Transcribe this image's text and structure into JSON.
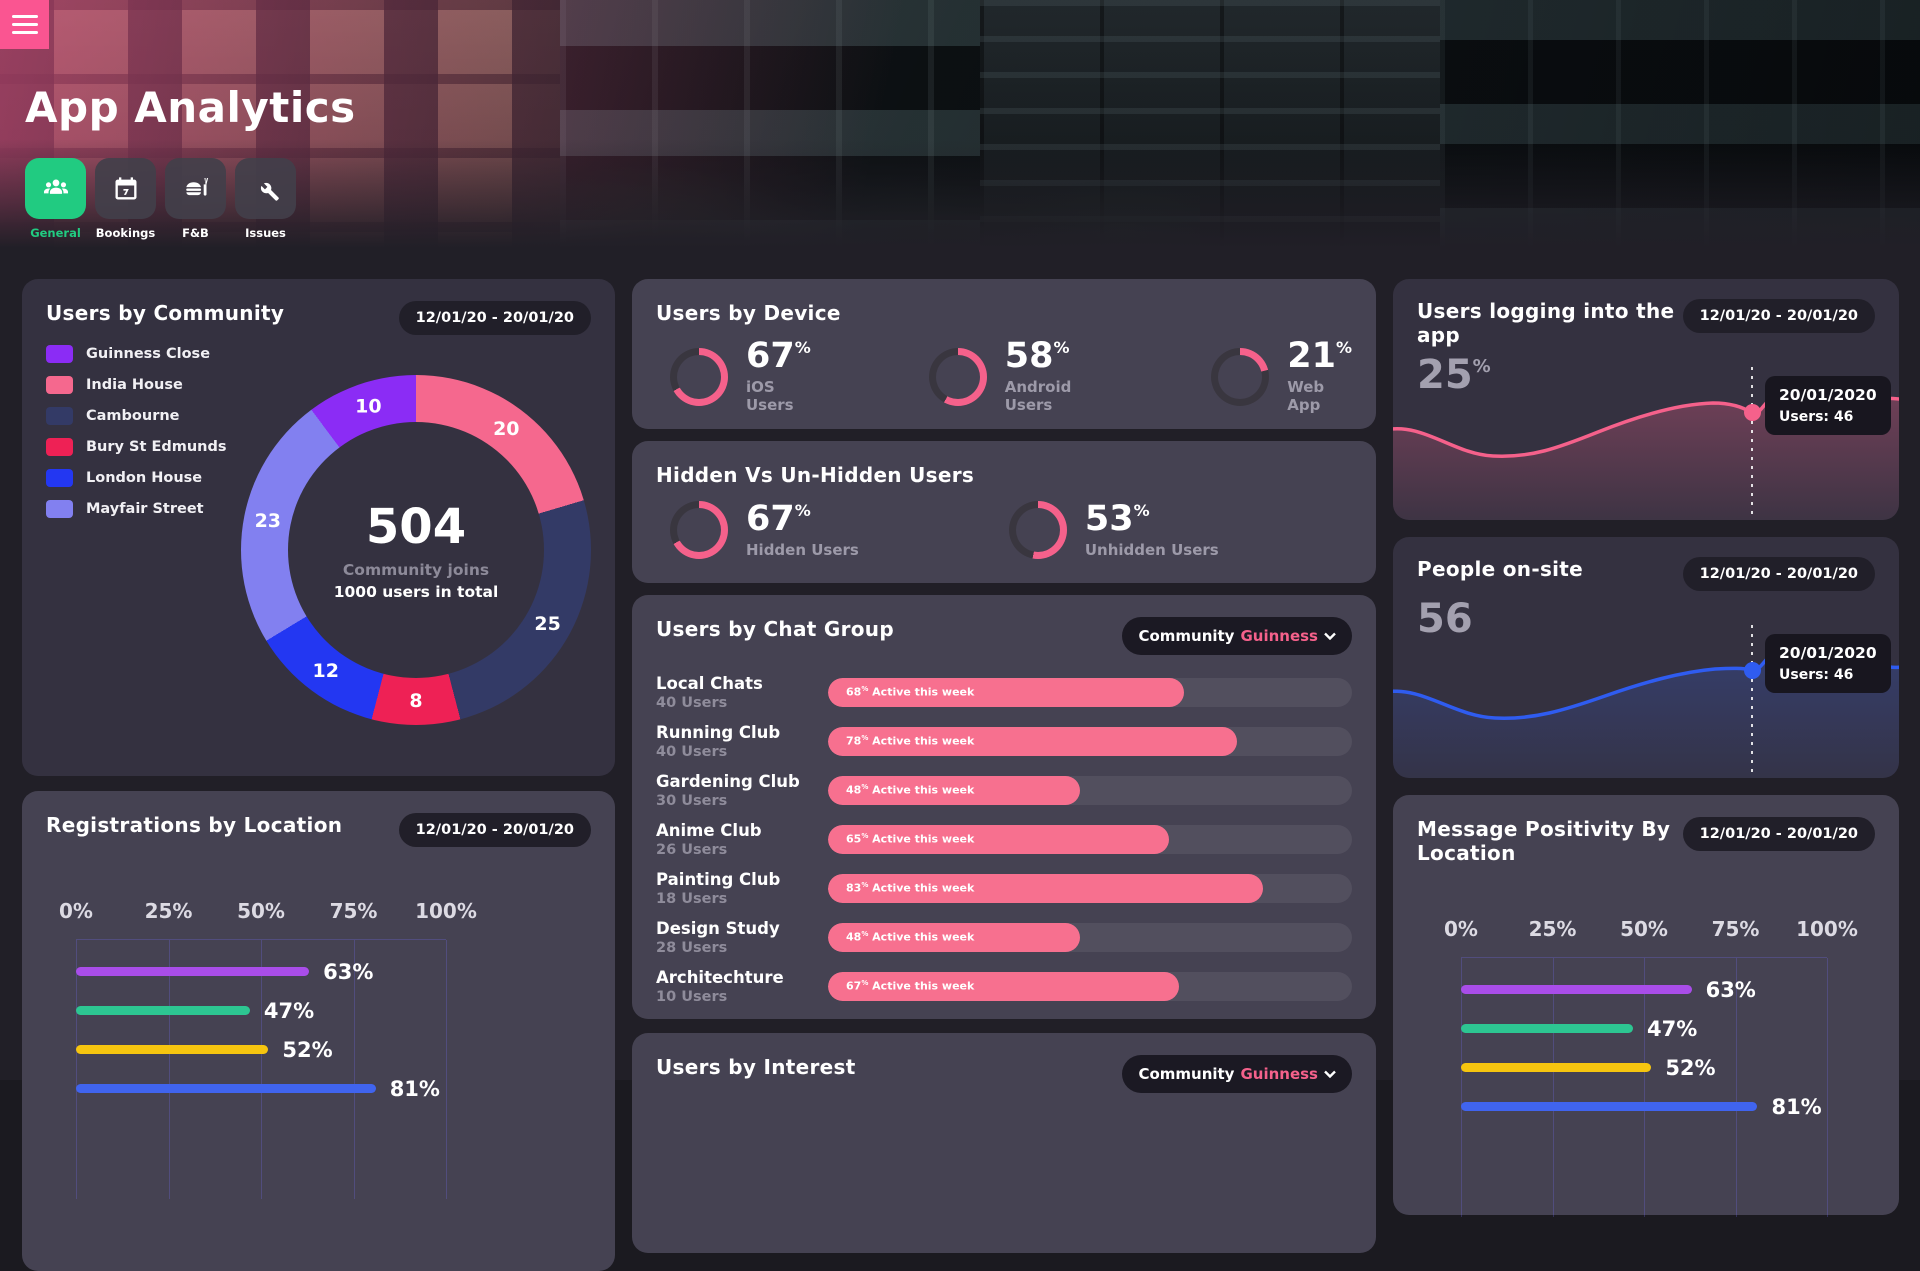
{
  "header": {
    "title": "App Analytics",
    "nav": [
      {
        "label": "General",
        "icon": "people-icon",
        "active": true
      },
      {
        "label": "Bookings",
        "icon": "calendar-icon",
        "active": false
      },
      {
        "label": "F&B",
        "icon": "food-icon",
        "active": false
      },
      {
        "label": "Issues",
        "icon": "wrench-icon",
        "active": false
      }
    ]
  },
  "colors": {
    "accent_pink": "#f5618b",
    "accent_green": "#21cb81",
    "hero_pink": "#fa5591",
    "gauge_track": "#39363f"
  },
  "cards": {
    "community": {
      "title": "Users by Community",
      "date_range": "12/01/20 - 20/01/20",
      "legend": [
        {
          "label": "Guinness Close",
          "color": "#8b2cf5"
        },
        {
          "label": "India House",
          "color": "#f5688e"
        },
        {
          "label": "Cambourne",
          "color": "#333a66"
        },
        {
          "label": "Bury St Edmunds",
          "color": "#ee2155"
        },
        {
          "label": "London House",
          "color": "#2337f2"
        },
        {
          "label": "Mayfair Street",
          "color": "#8280f0"
        }
      ],
      "segments": [
        {
          "label": "India House",
          "value": 20,
          "color": "#f5688e"
        },
        {
          "label": "Cambourne",
          "value": 25,
          "color": "#333a66"
        },
        {
          "label": "Bury St Edmunds",
          "value": 8,
          "color": "#ee2155"
        },
        {
          "label": "London House",
          "value": 12,
          "color": "#2337f2"
        },
        {
          "label": "Mayfair Street",
          "value": 23,
          "color": "#8280f0"
        },
        {
          "label": "Guinness Close",
          "value": 10,
          "color": "#8b2cf5"
        }
      ],
      "center_value": "504",
      "center_label": "Community joins",
      "center_sublabel": "1000 users in total"
    },
    "device": {
      "title": "Users by Device",
      "gauges": [
        {
          "value": 67,
          "label": "iOS Users"
        },
        {
          "value": 58,
          "label": "Android Users"
        },
        {
          "value": 21,
          "label": "Web App"
        }
      ]
    },
    "hidden": {
      "title": "Hidden Vs Un-Hidden Users",
      "gauges": [
        {
          "value": 67,
          "label": "Hidden Users"
        },
        {
          "value": 53,
          "label": "Unhidden Users"
        }
      ]
    },
    "chat_group": {
      "title": "Users by Chat Group",
      "selector_prefix": "Community",
      "selector_value": "Guinness",
      "bar_suffix": "Active this week",
      "rows": [
        {
          "name": "Local Chats",
          "users": "40 Users",
          "percent": 68
        },
        {
          "name": "Running Club",
          "users": "40 Users",
          "percent": 78
        },
        {
          "name": "Gardening Club",
          "users": "30 Users",
          "percent": 48
        },
        {
          "name": "Anime Club",
          "users": "26 Users",
          "percent": 65
        },
        {
          "name": "Painting Club",
          "users": "18 Users",
          "percent": 83
        },
        {
          "name": "Design Study",
          "users": "28 Users",
          "percent": 48
        },
        {
          "name": "Architechture",
          "users": "10 Users",
          "percent": 67
        }
      ]
    },
    "interest": {
      "title": "Users by Interest",
      "selector_prefix": "Community",
      "selector_value": "Guinness"
    },
    "logins": {
      "title": "Users logging into the app",
      "date_range": "12/01/20 - 20/01/20",
      "value": "25",
      "value_suffix": "%",
      "tooltip_date": "20/01/2020",
      "tooltip_users": "Users: 46",
      "line_color": "#f5618b"
    },
    "onsite": {
      "title": "People on-site",
      "date_range": "12/01/20 - 20/01/20",
      "value": "56",
      "tooltip_date": "20/01/2020",
      "tooltip_users": "Users: 46",
      "line_color": "#2f5cf0"
    },
    "registrations": {
      "title": "Registrations by Location",
      "date_range": "12/01/20 - 20/01/20",
      "axis": [
        "0%",
        "25%",
        "50%",
        "75%",
        "100%"
      ],
      "bars": [
        {
          "percent": 63,
          "color": "#a94de9"
        },
        {
          "percent": 47,
          "color": "#2dc692"
        },
        {
          "percent": 52,
          "color": "#f6c50f"
        },
        {
          "percent": 81,
          "color": "#4064ee"
        }
      ]
    },
    "positivity": {
      "title": "Message Positivity By Location",
      "date_range": "12/01/20 - 20/01/20",
      "axis": [
        "0%",
        "25%",
        "50%",
        "75%",
        "100%"
      ],
      "bars": [
        {
          "percent": 63,
          "color": "#a94de9"
        },
        {
          "percent": 47,
          "color": "#2dc692"
        },
        {
          "percent": 52,
          "color": "#f6c50f"
        },
        {
          "percent": 81,
          "color": "#4064ee"
        }
      ]
    }
  },
  "chart_data": [
    {
      "type": "pie",
      "title": "Users by Community",
      "categories": [
        "India House",
        "Cambourne",
        "Bury St Edmunds",
        "London House",
        "Mayfair Street",
        "Guinness Close"
      ],
      "values": [
        20,
        25,
        8,
        12,
        23,
        10
      ],
      "center_value": 504,
      "center_label": "Community joins",
      "center_sublabel": "1000 users in total"
    },
    {
      "type": "gauge",
      "title": "Users by Device",
      "categories": [
        "iOS Users",
        "Android Users",
        "Web App"
      ],
      "values": [
        67,
        58,
        21
      ],
      "unit": "%"
    },
    {
      "type": "gauge",
      "title": "Hidden Vs Un-Hidden Users",
      "categories": [
        "Hidden Users",
        "Unhidden Users"
      ],
      "values": [
        67,
        53
      ],
      "unit": "%"
    },
    {
      "type": "bar",
      "title": "Users by Chat Group",
      "categories": [
        "Local Chats",
        "Running Club",
        "Gardening Club",
        "Anime Club",
        "Painting Club",
        "Design Study",
        "Architechture"
      ],
      "group_sizes": [
        40,
        40,
        30,
        26,
        18,
        28,
        10
      ],
      "values": [
        68,
        78,
        48,
        65,
        83,
        48,
        67
      ],
      "unit": "% Active this week"
    },
    {
      "type": "line",
      "title": "Users logging into the app",
      "current": "25%",
      "highlight": {
        "date": "20/01/2020",
        "users": 46
      }
    },
    {
      "type": "line",
      "title": "People on-site",
      "current": 56,
      "highlight": {
        "date": "20/01/2020",
        "users": 46
      }
    },
    {
      "type": "bar",
      "title": "Registrations by Location",
      "values": [
        63,
        47,
        52,
        81
      ],
      "xlim": [
        0,
        100
      ],
      "xticks": [
        "0%",
        "25%",
        "50%",
        "75%",
        "100%"
      ]
    },
    {
      "type": "bar",
      "title": "Message Positivity By Location",
      "values": [
        63,
        47,
        52,
        81
      ],
      "xlim": [
        0,
        100
      ],
      "xticks": [
        "0%",
        "25%",
        "50%",
        "75%",
        "100%"
      ]
    }
  ]
}
